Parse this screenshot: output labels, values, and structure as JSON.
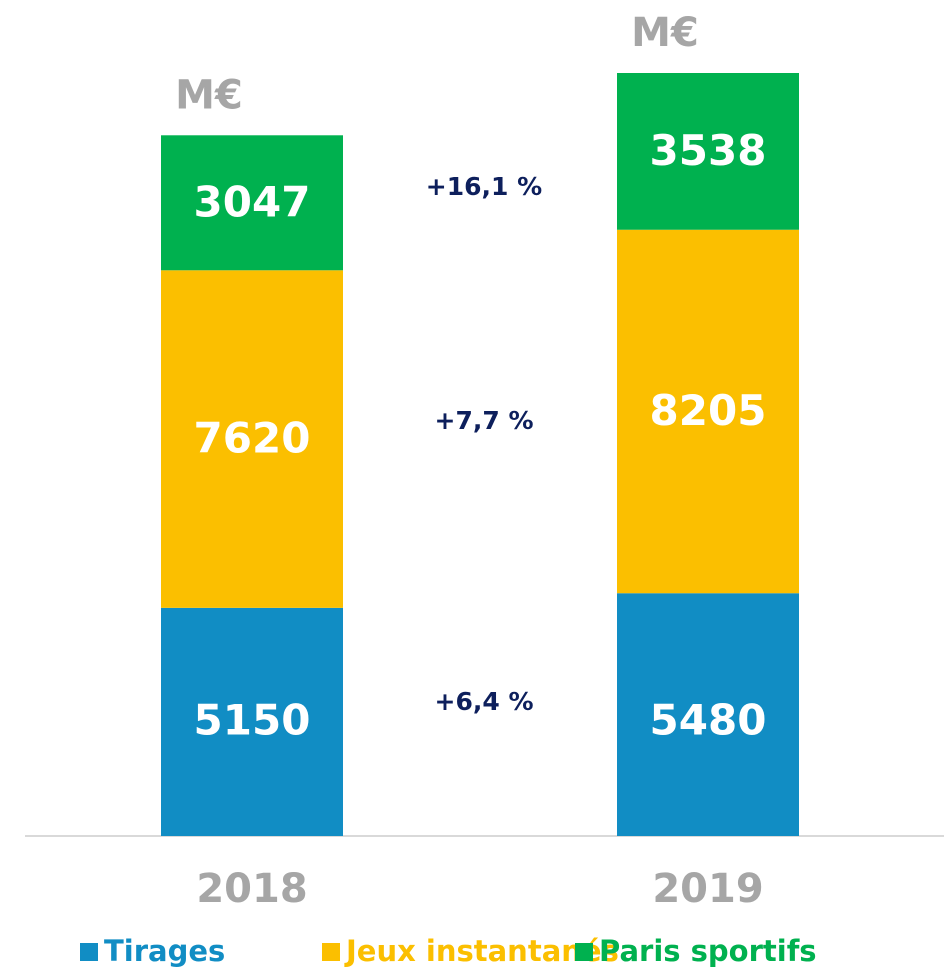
{
  "chart_data": {
    "type": "stacked_bar",
    "unit": "M€",
    "categories": [
      "2018",
      "2019"
    ],
    "series": [
      {
        "name": "Tirages",
        "color": "#118dc4",
        "values": [
          5150,
          5480
        ]
      },
      {
        "name": "Jeux instantanés",
        "color": "#fbbf00",
        "values": [
          7620,
          8205
        ]
      },
      {
        "name": "Paris sportifs",
        "color": "#00b14f",
        "values": [
          3047,
          3538
        ]
      }
    ],
    "annotations": [
      "+16,1 %",
      "+7,7 %",
      "+6,4 %"
    ],
    "legend": "bottom"
  }
}
